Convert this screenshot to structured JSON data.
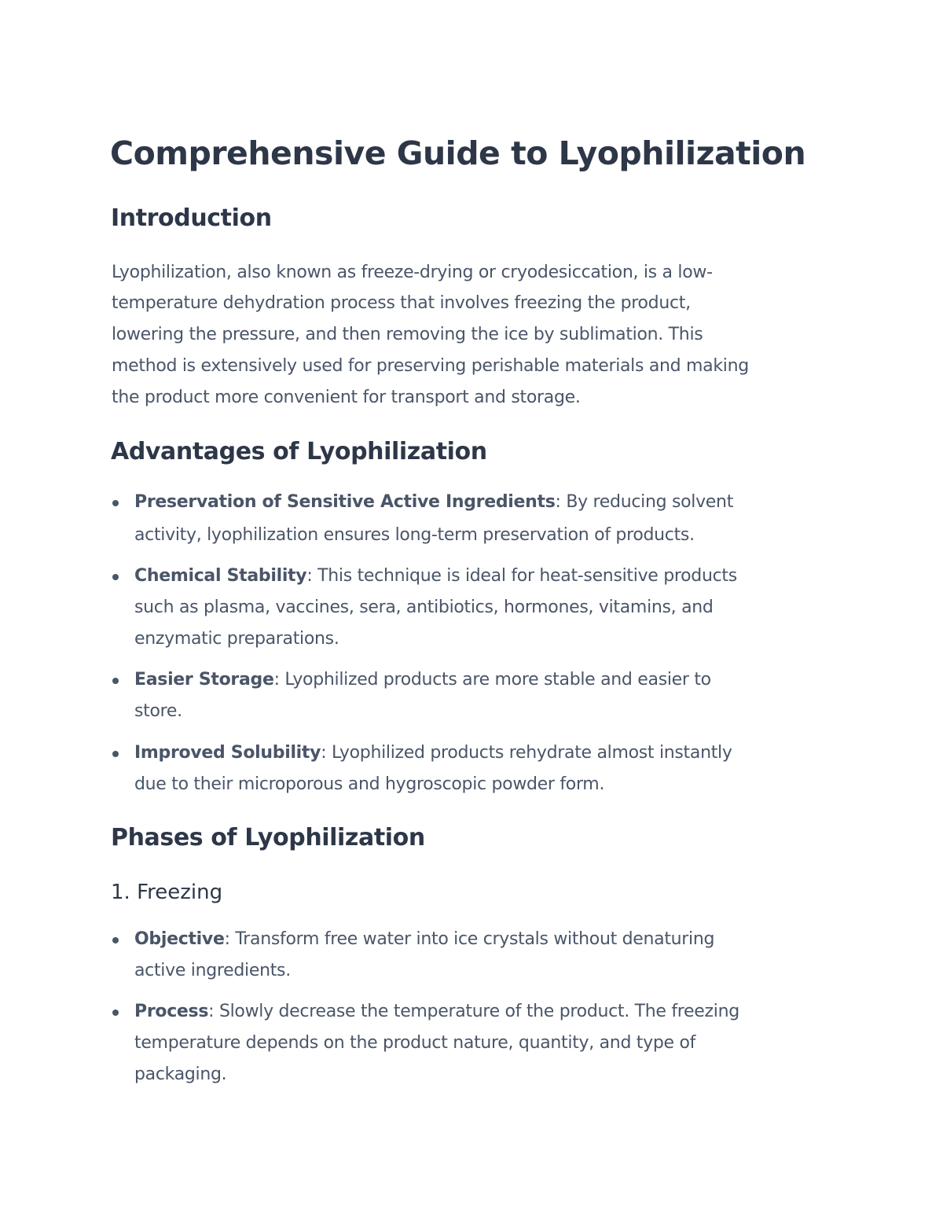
{
  "title": "Comprehensive Guide to Lyophilization",
  "intro": {
    "heading": "Introduction",
    "lines": [
      "Lyophilization, also known as freeze-drying or cryodesiccation, is a low-",
      "temperature dehydration process that involves freezing the product,",
      "lowering the pressure, and then removing the ice by sublimation. This",
      "method is extensively used for preserving perishable materials and making",
      "the product more convenient for transport and storage."
    ]
  },
  "advantages": {
    "heading": "Advantages of Lyophilization",
    "items": [
      {
        "label": "Preservation of Sensitive Active Ingredients",
        "first": ": By reducing solvent",
        "rest": [
          "activity, lyophilization ensures long-term preservation of products."
        ]
      },
      {
        "label": "Chemical Stability",
        "first": ": This technique is ideal for heat-sensitive products",
        "rest": [
          "such as plasma, vaccines, sera, antibiotics, hormones, vitamins, and",
          "enzymatic preparations."
        ]
      },
      {
        "label": "Easier Storage",
        "first": ": Lyophilized products are more stable and easier to",
        "rest": [
          "store."
        ]
      },
      {
        "label": "Improved Solubility",
        "first": ": Lyophilized products rehydrate almost instantly",
        "rest": [
          "due to their microporous and hygroscopic powder form."
        ]
      }
    ]
  },
  "phases": {
    "heading": "Phases of Lyophilization",
    "freezing": {
      "heading": "1. Freezing",
      "items": [
        {
          "label": "Objective",
          "first": ": Transform free water into ice crystals without denaturing",
          "rest": [
            "active ingredients."
          ]
        },
        {
          "label": "Process",
          "first": ": Slowly decrease the temperature of the product. The freezing",
          "rest": [
            "temperature depends on the product nature, quantity, and type of",
            "packaging."
          ]
        }
      ]
    }
  }
}
